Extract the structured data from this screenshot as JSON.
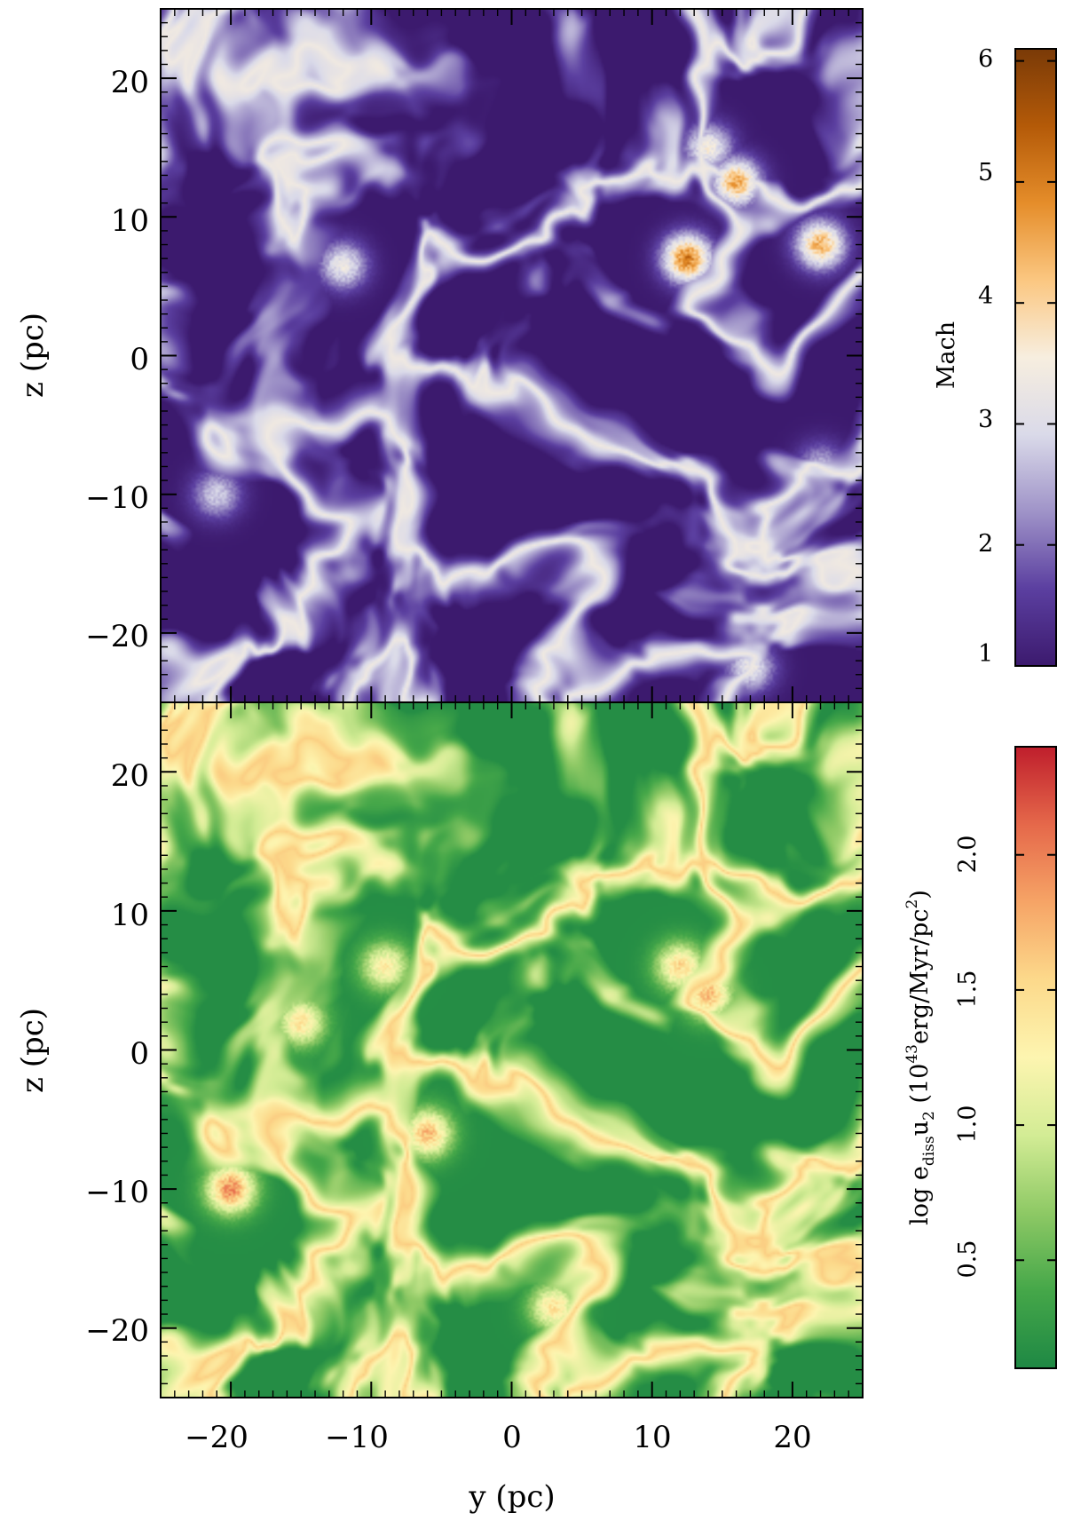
{
  "chart_data": [
    {
      "type": "heatmap",
      "panel": "top",
      "xlim": [
        -25,
        25
      ],
      "ylim": [
        -25,
        25
      ],
      "xticks": [
        -20,
        -10,
        0,
        10,
        20
      ],
      "yticks": [
        -20,
        -10,
        0,
        10,
        20
      ],
      "xtick_labels": [
        "−20",
        "−10",
        "0",
        "10",
        "20"
      ],
      "ytick_labels": [
        "−20",
        "−10",
        "0",
        "10",
        "20"
      ],
      "xlabel": "",
      "ylabel": "z (pc)",
      "colorbar": {
        "label": "Mach",
        "range": [
          1,
          6.1
        ],
        "ticks": [
          1,
          2,
          3,
          4,
          5,
          6
        ],
        "tick_labels": [
          "1",
          "2",
          "3",
          "4",
          "5",
          "6"
        ],
        "colors": [
          "#3c1a6e",
          "#5b3fa0",
          "#9f93c8",
          "#dadae9",
          "#f7eedf",
          "#fbc781",
          "#e58d2a",
          "#b45a08",
          "#7a3a07"
        ]
      },
      "field_features": [
        {
          "y": -12,
          "z": 6.5,
          "value": 3.6
        },
        {
          "y": 14,
          "z": 15,
          "value": 3.8
        },
        {
          "y": 12.5,
          "z": 7,
          "value": 5.6
        },
        {
          "y": 16,
          "z": 12.5,
          "value": 5.0
        },
        {
          "y": 22,
          "z": 8,
          "value": 4.9
        },
        {
          "y": 17,
          "z": -22.5,
          "value": 3.5
        },
        {
          "y": -21,
          "z": -10,
          "value": 3.1
        },
        {
          "y": 22,
          "z": -8,
          "value": 2.8
        }
      ],
      "grid": false,
      "grid_resolution": [
        320,
        320
      ]
    },
    {
      "type": "heatmap",
      "panel": "bottom",
      "xlim": [
        -25,
        25
      ],
      "ylim": [
        -25,
        25
      ],
      "xticks": [
        -20,
        -10,
        0,
        10,
        20
      ],
      "yticks": [
        -20,
        -10,
        0,
        10,
        20
      ],
      "xtick_labels": [
        "−20",
        "−10",
        "0",
        "10",
        "20"
      ],
      "ytick_labels": [
        "−20",
        "−10",
        "0",
        "10",
        "20"
      ],
      "xlabel": "y (pc)",
      "ylabel": "z (pc)",
      "colorbar": {
        "label_parts": {
          "prefix": "log e",
          "sub1": "diss",
          "mid": "u",
          "sub2": "2",
          "open": " (10",
          "sup1": "43",
          "unit": "erg/Myr/pc",
          "sup2": "2",
          "close": ")"
        },
        "range": [
          0.1,
          2.4
        ],
        "ticks": [
          0.5,
          1.0,
          1.5,
          2.0
        ],
        "tick_labels": [
          "0.5",
          "1.0",
          "1.5",
          "2.0"
        ],
        "colors": [
          "#1e8844",
          "#45a749",
          "#8ec965",
          "#d3ec95",
          "#fdf5b0",
          "#fcd98b",
          "#f6a466",
          "#e5684a",
          "#bf1e2c"
        ]
      },
      "field_features": [
        {
          "y": -20,
          "z": -10,
          "value": 2.2
        },
        {
          "y": 14,
          "z": 4,
          "value": 1.9
        },
        {
          "y": -6,
          "z": -6,
          "value": 1.9
        },
        {
          "y": 3,
          "z": -18.5,
          "value": 1.6
        },
        {
          "y": 12,
          "z": 6,
          "value": 1.7
        },
        {
          "y": -9,
          "z": 6,
          "value": 1.5
        },
        {
          "y": -15,
          "z": 2,
          "value": 1.6
        }
      ],
      "grid": false,
      "grid_resolution": [
        320,
        320
      ]
    }
  ]
}
